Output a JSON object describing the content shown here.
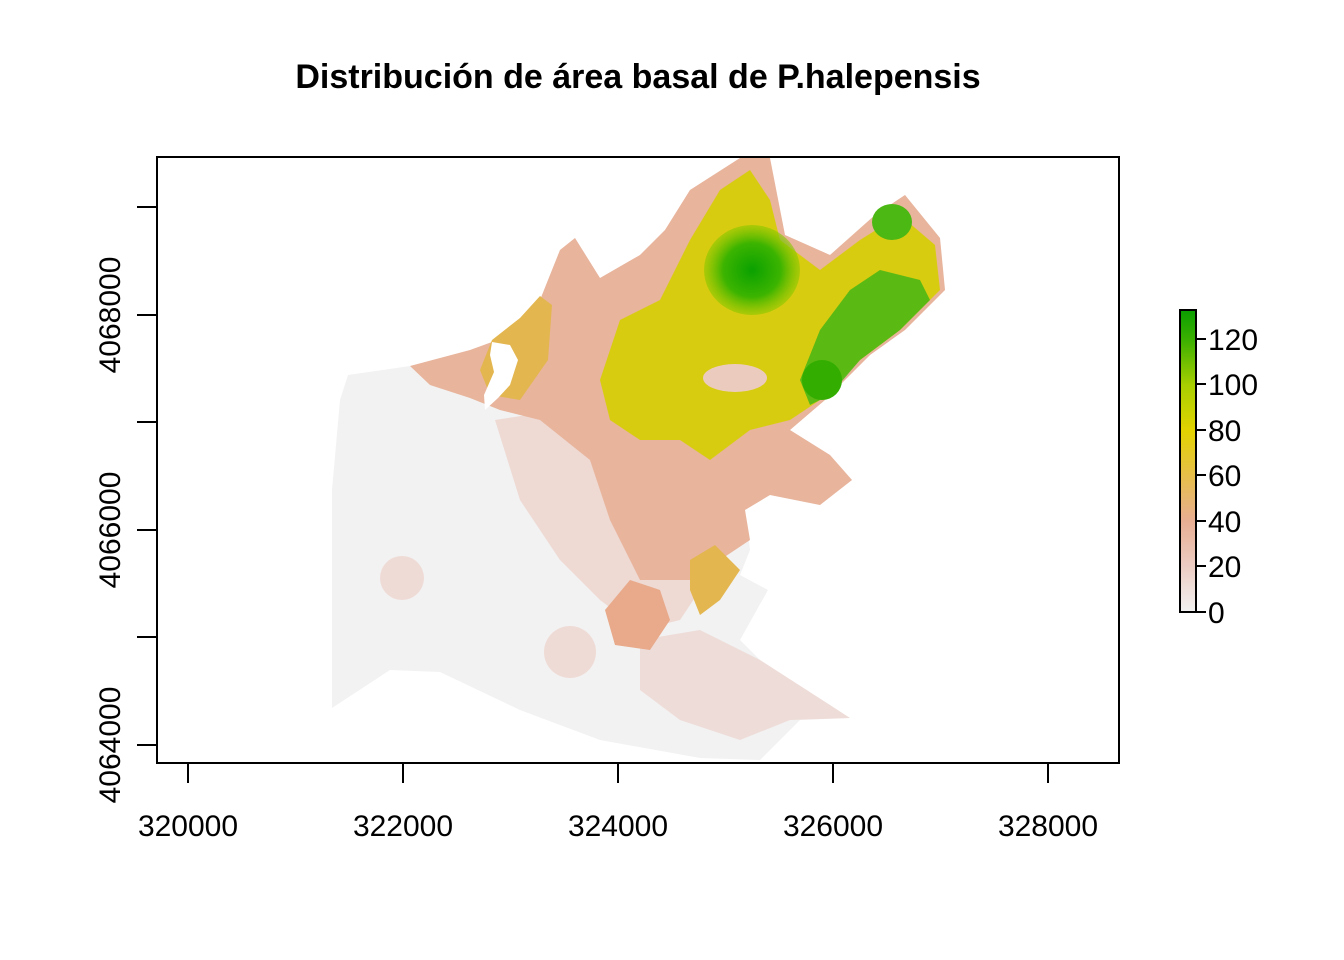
{
  "title": "Distribución de área basal de P.halepensis",
  "map": {
    "x_ticks": [
      "320000",
      "322000",
      "324000",
      "326000",
      "328000"
    ],
    "y_ticks": [
      "4064000",
      "4066000",
      "4068000"
    ],
    "colors": {
      "low": "#f2f2f2",
      "mid": "#e8ae93",
      "yellow": "#e3d300",
      "green": "#1aa800"
    }
  },
  "legend": {
    "labels": [
      "0",
      "20",
      "40",
      "60",
      "80",
      "100",
      "120"
    ],
    "colors": [
      "#f2f2f2",
      "#eacbc1",
      "#e8b095",
      "#e3b85a",
      "#e3d300",
      "#9ccd00",
      "#0aa100"
    ]
  }
}
